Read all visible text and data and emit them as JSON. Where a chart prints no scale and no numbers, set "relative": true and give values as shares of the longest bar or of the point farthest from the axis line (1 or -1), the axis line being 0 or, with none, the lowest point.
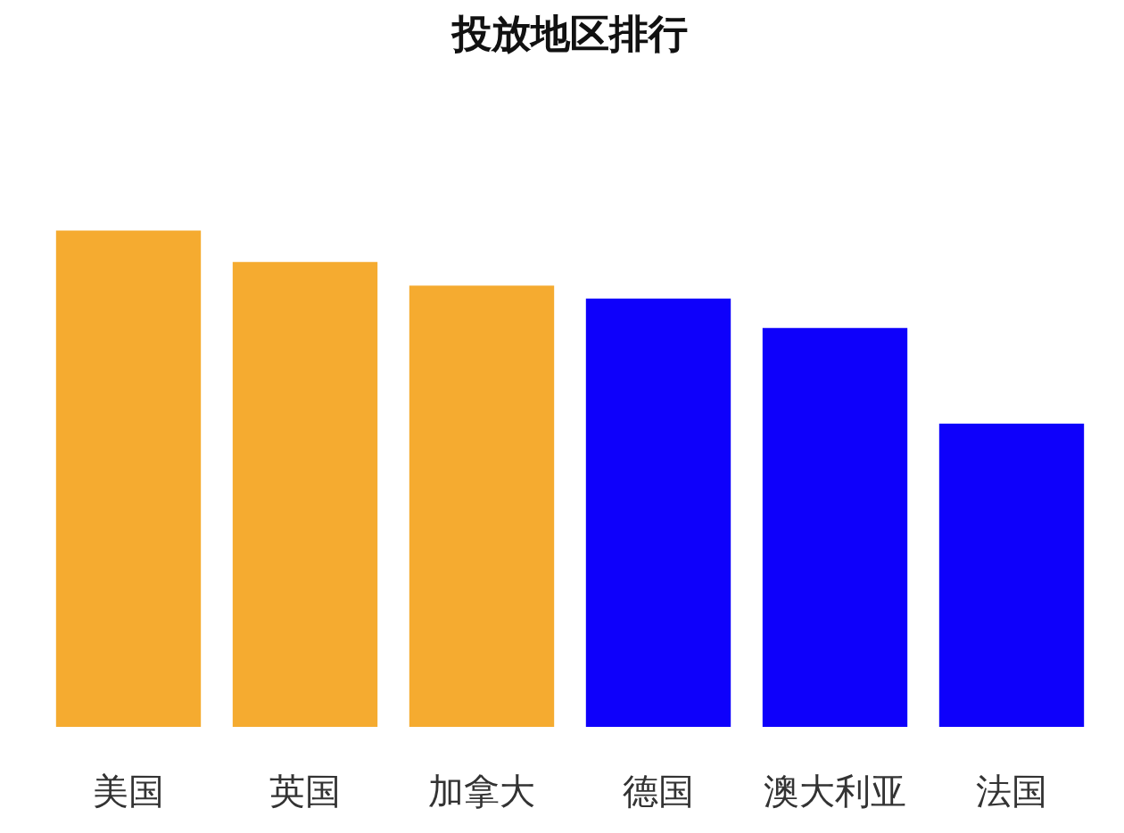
{
  "chart_data": {
    "type": "bar",
    "title": "投放地区排行",
    "relative": true,
    "categories": [
      "美国",
      "英国",
      "加拿大",
      "德国",
      "澳大利亚",
      "法国"
    ],
    "values": [
      1,
      0.937,
      0.889,
      0.863,
      0.804,
      0.611
    ],
    "colors": [
      "#f5ab30",
      "#f5ab30",
      "#f5ab30",
      "#0e00fb",
      "#0e00fb",
      "#0e00fb"
    ],
    "grid": false
  }
}
